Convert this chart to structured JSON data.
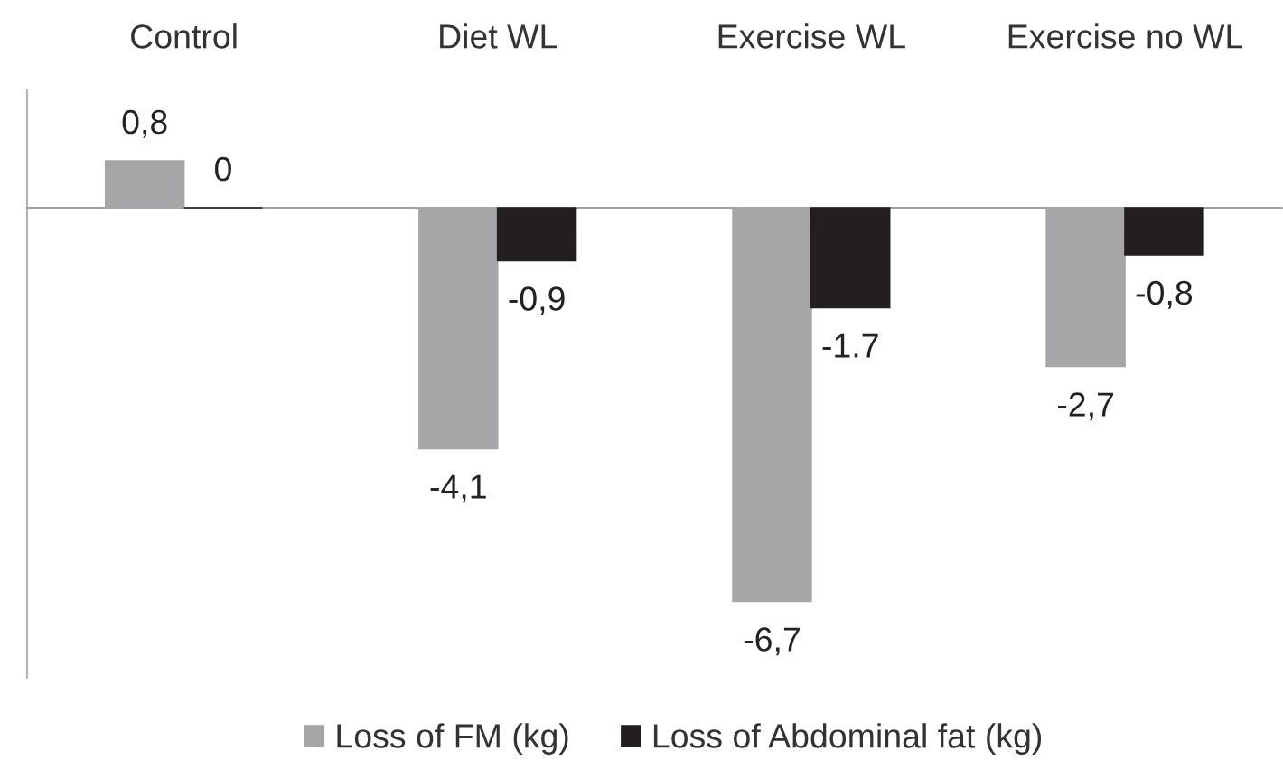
{
  "chart_data": {
    "type": "bar",
    "categories": [
      "Control",
      "Diet WL",
      "Exercise WL",
      "Exercise no WL"
    ],
    "series": [
      {
        "name": "Loss of FM (kg)",
        "color": "#a6a6a8",
        "values": [
          0.8,
          -4.1,
          -6.7,
          -2.7
        ],
        "value_labels": [
          "0,8",
          "-4,1",
          "-6,7",
          "-2,7"
        ]
      },
      {
        "name": "Loss of Abdominal fat (kg)",
        "color": "#231f20",
        "values": [
          0,
          -0.9,
          -1.7,
          -0.8
        ],
        "value_labels": [
          "0",
          "-0,9",
          "-1.7",
          "-0,8"
        ]
      }
    ],
    "ylim": [
      -8,
      2
    ],
    "tick_labels": "x",
    "grid": false,
    "legend": "bottom"
  }
}
